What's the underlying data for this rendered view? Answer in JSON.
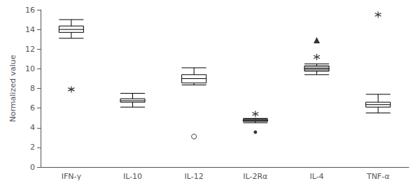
{
  "chart_data": {
    "type": "boxplot",
    "ylabel": "Normalized value",
    "categories": [
      "IFN-γ",
      "IL-10",
      "IL-12",
      "IL-2Rα",
      "IL-4",
      "TNF-α"
    ],
    "boxes": [
      {
        "whislo": 13.1,
        "q1": 13.7,
        "median": 14.0,
        "q3": 14.35,
        "whishi": 15.0
      },
      {
        "whislo": 6.1,
        "q1": 6.6,
        "median": 6.75,
        "q3": 6.95,
        "whishi": 7.5
      },
      {
        "whislo": 8.35,
        "q1": 8.55,
        "median": 9.0,
        "q3": 9.4,
        "whishi": 10.1
      },
      {
        "whislo": 4.5,
        "q1": 4.65,
        "median": 4.75,
        "q3": 4.85,
        "whishi": 4.95
      },
      {
        "whislo": 9.4,
        "q1": 9.75,
        "median": 10.0,
        "q3": 10.3,
        "whishi": 10.5
      },
      {
        "whislo": 5.5,
        "q1": 6.1,
        "median": 6.35,
        "q3": 6.6,
        "whishi": 7.4
      }
    ],
    "color": "#000000",
    "colors": [
      "#ffffff",
      "#ffffff",
      "#ffffff",
      "#b0b0b0",
      "#b0b0b0",
      "#ffffff"
    ],
    "outliers": [
      {
        "marker": "star",
        "categories": [
          "IFN-γ",
          "IL-2Rα",
          "IL-4",
          "TNF-α"
        ],
        "values": [
          7.9,
          5.4,
          11.2,
          15.5
        ]
      },
      {
        "marker": "circle",
        "categories": [
          "IL-12"
        ],
        "values": [
          3.1
        ]
      },
      {
        "marker": "dot",
        "categories": [
          "IL-2Rα"
        ],
        "values": [
          3.55
        ]
      },
      {
        "marker": "triangle",
        "categories": [
          "IL-4"
        ],
        "values": [
          12.9
        ]
      }
    ],
    "ylim": [
      0,
      16
    ],
    "yticks": [
      0,
      2,
      4,
      6,
      8,
      10,
      12,
      14,
      16
    ],
    "grid": false
  }
}
